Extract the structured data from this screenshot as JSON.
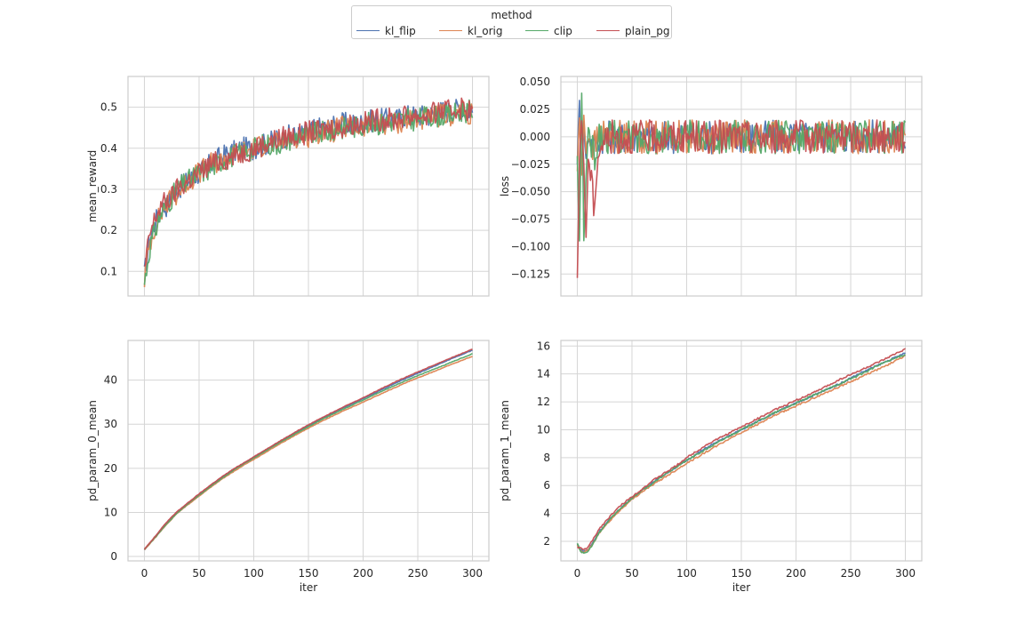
{
  "legend": {
    "title": "method",
    "entries": [
      {
        "name": "kl_flip",
        "color": "#4c72b0"
      },
      {
        "name": "kl_orig",
        "color": "#dd8452"
      },
      {
        "name": "clip",
        "color": "#55a868"
      },
      {
        "name": "plain_pg",
        "color": "#c44e52"
      }
    ]
  },
  "chart_data": [
    {
      "type": "line",
      "xlabel": "",
      "ylabel": "mean_reward",
      "xlim": [
        -15,
        315
      ],
      "ylim": [
        0.04,
        0.575
      ],
      "xticks": [
        0,
        50,
        100,
        150,
        200,
        250,
        300
      ],
      "yticks": [
        0.1,
        0.2,
        0.3,
        0.4,
        0.5
      ],
      "show_xticklabels": false,
      "grid": true,
      "series": [
        {
          "name": "kl_flip",
          "color": "#4c72b0",
          "x": [
            0,
            5,
            10,
            15,
            20,
            25,
            30,
            40,
            50,
            60,
            70,
            80,
            90,
            100,
            110,
            120,
            130,
            140,
            150,
            160,
            170,
            180,
            190,
            200,
            210,
            220,
            230,
            240,
            250,
            260,
            270,
            280,
            290,
            300
          ],
          "y": [
            0.09,
            0.18,
            0.22,
            0.25,
            0.26,
            0.28,
            0.3,
            0.32,
            0.34,
            0.36,
            0.38,
            0.39,
            0.4,
            0.4,
            0.41,
            0.42,
            0.43,
            0.43,
            0.44,
            0.45,
            0.45,
            0.46,
            0.46,
            0.46,
            0.47,
            0.47,
            0.47,
            0.48,
            0.48,
            0.48,
            0.49,
            0.49,
            0.5,
            0.49
          ]
        },
        {
          "name": "kl_orig",
          "color": "#dd8452",
          "x": [
            0,
            5,
            10,
            15,
            20,
            25,
            30,
            40,
            50,
            60,
            70,
            80,
            90,
            100,
            110,
            120,
            130,
            140,
            150,
            160,
            170,
            180,
            190,
            200,
            210,
            220,
            230,
            240,
            250,
            260,
            270,
            280,
            290,
            300
          ],
          "y": [
            0.08,
            0.17,
            0.21,
            0.24,
            0.26,
            0.28,
            0.29,
            0.32,
            0.34,
            0.36,
            0.37,
            0.38,
            0.39,
            0.4,
            0.41,
            0.41,
            0.42,
            0.43,
            0.43,
            0.44,
            0.44,
            0.45,
            0.45,
            0.45,
            0.46,
            0.46,
            0.46,
            0.47,
            0.47,
            0.47,
            0.48,
            0.48,
            0.49,
            0.48
          ]
        },
        {
          "name": "clip",
          "color": "#55a868",
          "x": [
            0,
            5,
            10,
            15,
            20,
            25,
            30,
            40,
            50,
            60,
            70,
            80,
            90,
            100,
            110,
            120,
            130,
            140,
            150,
            160,
            170,
            180,
            190,
            200,
            210,
            220,
            230,
            240,
            250,
            260,
            270,
            280,
            290,
            300
          ],
          "y": [
            0.07,
            0.16,
            0.2,
            0.24,
            0.26,
            0.28,
            0.3,
            0.32,
            0.34,
            0.35,
            0.37,
            0.38,
            0.39,
            0.4,
            0.41,
            0.41,
            0.42,
            0.43,
            0.43,
            0.44,
            0.44,
            0.45,
            0.45,
            0.46,
            0.46,
            0.46,
            0.47,
            0.47,
            0.47,
            0.48,
            0.48,
            0.48,
            0.49,
            0.49
          ]
        },
        {
          "name": "plain_pg",
          "color": "#c44e52",
          "x": [
            0,
            5,
            10,
            15,
            20,
            25,
            30,
            40,
            50,
            60,
            70,
            80,
            90,
            100,
            110,
            120,
            130,
            140,
            150,
            160,
            170,
            180,
            190,
            200,
            210,
            220,
            230,
            240,
            250,
            260,
            270,
            280,
            290,
            300
          ],
          "y": [
            0.1,
            0.19,
            0.23,
            0.26,
            0.27,
            0.28,
            0.3,
            0.32,
            0.34,
            0.36,
            0.37,
            0.38,
            0.39,
            0.4,
            0.41,
            0.42,
            0.43,
            0.43,
            0.44,
            0.44,
            0.45,
            0.45,
            0.46,
            0.46,
            0.47,
            0.47,
            0.47,
            0.48,
            0.48,
            0.48,
            0.49,
            0.49,
            0.5,
            0.49
          ]
        }
      ]
    },
    {
      "type": "line",
      "xlabel": "",
      "ylabel": "loss",
      "xlim": [
        -15,
        315
      ],
      "ylim": [
        -0.145,
        0.055
      ],
      "xticks": [
        0,
        50,
        100,
        150,
        200,
        250,
        300
      ],
      "yticks": [
        -0.125,
        -0.1,
        -0.075,
        -0.05,
        -0.025,
        0.0,
        0.025,
        0.05
      ],
      "ytick_labels": [
        "−0.125",
        "−0.100",
        "−0.075",
        "−0.050",
        "−0.025",
        "0.000",
        "0.025",
        "0.050"
      ],
      "show_xticklabels": false,
      "grid": true,
      "series": [
        {
          "name": "kl_flip",
          "color": "#4c72b0",
          "x": [
            0,
            2,
            4,
            6,
            8,
            10,
            15,
            20,
            30,
            40,
            60,
            80,
            100,
            120,
            140,
            160,
            180,
            200,
            220,
            240,
            260,
            280,
            300
          ],
          "y": [
            -0.02,
            0.03,
            -0.03,
            0.01,
            -0.02,
            0.0,
            -0.01,
            0.0,
            0.0,
            0.0,
            0.0,
            0.0,
            0.0,
            0.0,
            0.0,
            0.0,
            0.0,
            0.0,
            0.0,
            0.0,
            0.0,
            0.0,
            0.0
          ]
        },
        {
          "name": "kl_orig",
          "color": "#dd8452",
          "x": [
            0,
            2,
            4,
            6,
            8,
            10,
            15,
            20,
            30,
            40,
            60,
            80,
            100,
            120,
            140,
            160,
            180,
            200,
            220,
            240,
            260,
            280,
            300
          ],
          "y": [
            -0.03,
            0.02,
            -0.04,
            0.02,
            -0.01,
            0.0,
            -0.01,
            0.0,
            0.0,
            0.0,
            0.0,
            0.0,
            0.0,
            0.0,
            0.0,
            0.0,
            0.0,
            0.0,
            0.0,
            0.0,
            0.0,
            0.0,
            0.0
          ]
        },
        {
          "name": "clip",
          "color": "#55a868",
          "x": [
            0,
            2,
            4,
            6,
            8,
            10,
            15,
            20,
            30,
            40,
            60,
            80,
            100,
            120,
            140,
            160,
            180,
            200,
            220,
            240,
            260,
            280,
            300
          ],
          "y": [
            -0.02,
            -0.1,
            0.04,
            -0.09,
            -0.04,
            0.01,
            -0.02,
            0.0,
            0.0,
            0.0,
            0.0,
            0.0,
            0.0,
            0.0,
            0.0,
            0.0,
            0.0,
            0.0,
            0.0,
            0.0,
            0.0,
            0.0,
            0.0
          ]
        },
        {
          "name": "plain_pg",
          "color": "#c44e52",
          "x": [
            0,
            2,
            4,
            6,
            8,
            10,
            15,
            20,
            30,
            40,
            60,
            80,
            100,
            120,
            140,
            160,
            180,
            200,
            220,
            240,
            260,
            280,
            300
          ],
          "y": [
            -0.135,
            -0.02,
            0.02,
            -0.03,
            -0.09,
            -0.02,
            -0.06,
            -0.01,
            0.0,
            0.0,
            0.0,
            0.0,
            0.0,
            0.0,
            0.0,
            0.0,
            0.0,
            0.0,
            0.0,
            0.0,
            0.0,
            0.0,
            0.0
          ]
        }
      ]
    },
    {
      "type": "line",
      "xlabel": "iter",
      "ylabel": "pd_param_0_mean",
      "xlim": [
        -15,
        315
      ],
      "ylim": [
        -1,
        49
      ],
      "xticks": [
        0,
        50,
        100,
        150,
        200,
        250,
        300
      ],
      "yticks": [
        0,
        10,
        20,
        30,
        40
      ],
      "show_xticklabels": true,
      "grid": true,
      "series": [
        {
          "name": "kl_flip",
          "color": "#4c72b0",
          "x": [
            0,
            10,
            20,
            30,
            40,
            50,
            60,
            70,
            80,
            90,
            100,
            120,
            140,
            160,
            180,
            200,
            220,
            240,
            260,
            280,
            300
          ],
          "y": [
            1.5,
            4.5,
            7.5,
            10.0,
            12.0,
            14.0,
            16.0,
            17.8,
            19.5,
            21.0,
            22.5,
            25.5,
            28.3,
            31.0,
            33.5,
            35.8,
            38.2,
            40.5,
            42.6,
            44.8,
            46.8
          ]
        },
        {
          "name": "kl_orig",
          "color": "#dd8452",
          "x": [
            0,
            10,
            20,
            30,
            40,
            50,
            60,
            70,
            80,
            90,
            100,
            120,
            140,
            160,
            180,
            200,
            220,
            240,
            260,
            280,
            300
          ],
          "y": [
            1.5,
            4.3,
            7.2,
            9.8,
            11.8,
            13.7,
            15.6,
            17.4,
            19.0,
            20.6,
            22.0,
            25.0,
            27.8,
            30.4,
            32.8,
            35.0,
            37.3,
            39.5,
            41.5,
            43.5,
            45.4
          ]
        },
        {
          "name": "clip",
          "color": "#55a868",
          "x": [
            0,
            10,
            20,
            30,
            40,
            50,
            60,
            70,
            80,
            90,
            100,
            120,
            140,
            160,
            180,
            200,
            220,
            240,
            260,
            280,
            300
          ],
          "y": [
            1.6,
            4.4,
            7.3,
            9.9,
            12.0,
            13.9,
            15.8,
            17.6,
            19.3,
            20.9,
            22.3,
            25.3,
            28.1,
            30.8,
            33.2,
            35.5,
            37.8,
            40.0,
            42.0,
            44.0,
            46.0
          ]
        },
        {
          "name": "plain_pg",
          "color": "#c44e52",
          "x": [
            0,
            10,
            20,
            30,
            40,
            50,
            60,
            70,
            80,
            90,
            100,
            120,
            140,
            160,
            180,
            200,
            220,
            240,
            260,
            280,
            300
          ],
          "y": [
            1.7,
            4.6,
            7.7,
            10.2,
            12.2,
            14.2,
            16.1,
            17.9,
            19.6,
            21.1,
            22.6,
            25.6,
            28.5,
            31.2,
            33.7,
            36.0,
            38.5,
            40.8,
            42.9,
            45.0,
            47.0
          ]
        }
      ]
    },
    {
      "type": "line",
      "xlabel": "iter",
      "ylabel": "pd_param_1_mean",
      "xlim": [
        -15,
        315
      ],
      "ylim": [
        0.6,
        16.4
      ],
      "xticks": [
        0,
        50,
        100,
        150,
        200,
        250,
        300
      ],
      "yticks": [
        2,
        4,
        6,
        8,
        10,
        12,
        14,
        16
      ],
      "show_xticklabels": true,
      "grid": true,
      "series": [
        {
          "name": "kl_flip",
          "color": "#4c72b0",
          "x": [
            0,
            3,
            6,
            10,
            15,
            20,
            30,
            40,
            50,
            60,
            70,
            80,
            90,
            100,
            120,
            140,
            160,
            180,
            200,
            220,
            240,
            260,
            280,
            300
          ],
          "y": [
            1.8,
            1.4,
            1.3,
            1.4,
            2.0,
            2.7,
            3.6,
            4.4,
            5.1,
            5.7,
            6.3,
            6.8,
            7.3,
            7.8,
            8.8,
            9.6,
            10.4,
            11.2,
            11.9,
            12.6,
            13.3,
            14.1,
            14.8,
            15.5
          ]
        },
        {
          "name": "kl_orig",
          "color": "#dd8452",
          "x": [
            0,
            3,
            6,
            10,
            15,
            20,
            30,
            40,
            50,
            60,
            70,
            80,
            90,
            100,
            120,
            140,
            160,
            180,
            200,
            220,
            240,
            260,
            280,
            300
          ],
          "y": [
            1.7,
            1.3,
            1.2,
            1.4,
            1.9,
            2.6,
            3.5,
            4.3,
            5.0,
            5.6,
            6.1,
            6.6,
            7.1,
            7.6,
            8.5,
            9.4,
            10.2,
            11.0,
            11.7,
            12.4,
            13.1,
            13.8,
            14.5,
            15.3
          ]
        },
        {
          "name": "clip",
          "color": "#55a868",
          "x": [
            0,
            3,
            6,
            10,
            15,
            20,
            30,
            40,
            50,
            60,
            70,
            80,
            90,
            100,
            120,
            140,
            160,
            180,
            200,
            220,
            240,
            260,
            280,
            300
          ],
          "y": [
            1.9,
            1.3,
            1.1,
            1.3,
            1.9,
            2.6,
            3.6,
            4.4,
            5.1,
            5.7,
            6.2,
            6.8,
            7.3,
            7.8,
            8.7,
            9.6,
            10.4,
            11.2,
            11.9,
            12.6,
            13.3,
            14.0,
            14.8,
            15.4
          ]
        },
        {
          "name": "plain_pg",
          "color": "#c44e52",
          "x": [
            0,
            3,
            6,
            10,
            15,
            20,
            30,
            40,
            50,
            60,
            70,
            80,
            90,
            100,
            120,
            140,
            160,
            180,
            200,
            220,
            240,
            260,
            280,
            300
          ],
          "y": [
            1.6,
            1.5,
            1.4,
            1.6,
            2.2,
            2.9,
            3.8,
            4.6,
            5.2,
            5.8,
            6.4,
            6.9,
            7.4,
            8.0,
            9.0,
            9.8,
            10.6,
            11.4,
            12.1,
            12.8,
            13.6,
            14.3,
            15.0,
            15.8
          ]
        }
      ]
    }
  ]
}
